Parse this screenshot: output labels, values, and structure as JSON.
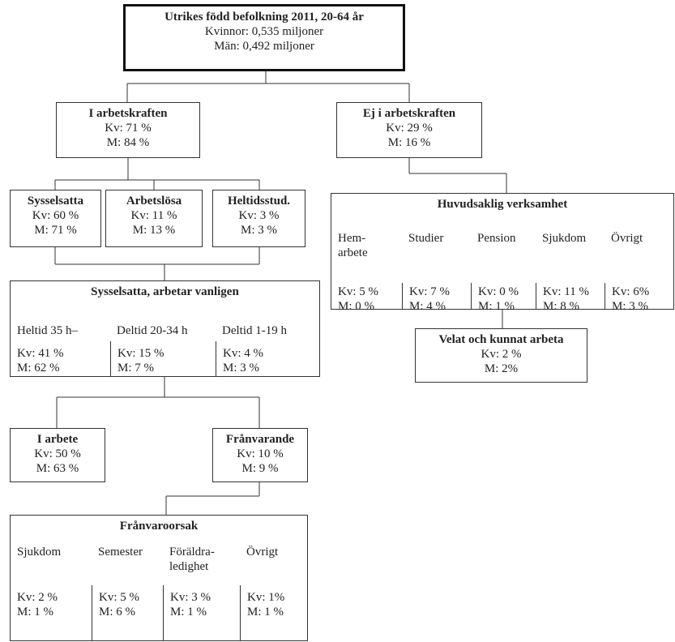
{
  "root": {
    "title": "Utrikes född befolkning 2011, 20-64 år",
    "lines": [
      "Kvinnor: 0,535 miljoner",
      "Män: 0,492 miljoner"
    ]
  },
  "nodes": [
    {
      "title": "I arbetskraften",
      "lines": [
        "Kv: 71 %",
        "M: 84 %"
      ]
    },
    {
      "title": "Ej i  arbetskraften",
      "lines": [
        "Kv: 29 %",
        "M: 16 %"
      ]
    },
    {
      "title": "Sysselsatta",
      "lines": [
        "Kv: 60 %",
        "M: 71 %"
      ]
    },
    {
      "title": "Arbetslösa",
      "lines": [
        "Kv: 11 %",
        "M: 13 %"
      ]
    },
    {
      "title": "Heltidsstud.",
      "lines": [
        "Kv: 3 %",
        "M: 3 %"
      ]
    },
    {
      "title": "Sysselsatta, arbetar vanligen",
      "columns": [
        {
          "header": "Heltid 35 h–",
          "kv": "Kv: 41 %",
          "m": "M: 62 %"
        },
        {
          "header": "Deltid 20-34 h",
          "kv": "Kv:  15 %",
          "m": "M: 7 %"
        },
        {
          "header": "Deltid 1-19 h",
          "kv": "Kv: 4 %",
          "m": "M: 3 %"
        }
      ]
    },
    {
      "title": "I arbete",
      "lines": [
        "Kv: 50 %",
        "M: 63 %"
      ]
    },
    {
      "title": "Frånvarande",
      "lines": [
        "Kv: 10 %",
        "M: 9 %"
      ]
    },
    {
      "title": "Frånvaroorsak",
      "columns": [
        {
          "header": "Sjukdom",
          "kv": "Kv: 2 %",
          "m": "M: 1 %"
        },
        {
          "header": "Semester",
          "kv": "Kv:  5 %",
          "m": "M: 6 %"
        },
        {
          "header": "Föräldra-\nledighet",
          "kv": "Kv: 3 %",
          "m": "M: 1 %"
        },
        {
          "header": "Övrigt",
          "kv": "Kv: 1%",
          "m": "M: 1 %"
        }
      ]
    },
    {
      "title": "Huvudsaklig verksamhet",
      "columns": [
        {
          "header": "Hem-\narbete",
          "kv": "Kv: 5 %",
          "m": "M: 0  %"
        },
        {
          "header": "Studier",
          "kv": "Kv:  7 %",
          "m": "M: 4 %"
        },
        {
          "header": "Pension",
          "kv": "Kv: 0 %",
          "m": "M: 1 %"
        },
        {
          "header": "Sjukdom",
          "kv": "Kv: 11 %",
          "m": "M: 8 %"
        },
        {
          "header": "Övrigt",
          "kv": "Kv: 6%",
          "m": "M: 3 %"
        }
      ]
    },
    {
      "title": "Velat och kunnat arbeta",
      "lines": [
        "Kv: 2 %",
        "M: 2%"
      ]
    }
  ]
}
